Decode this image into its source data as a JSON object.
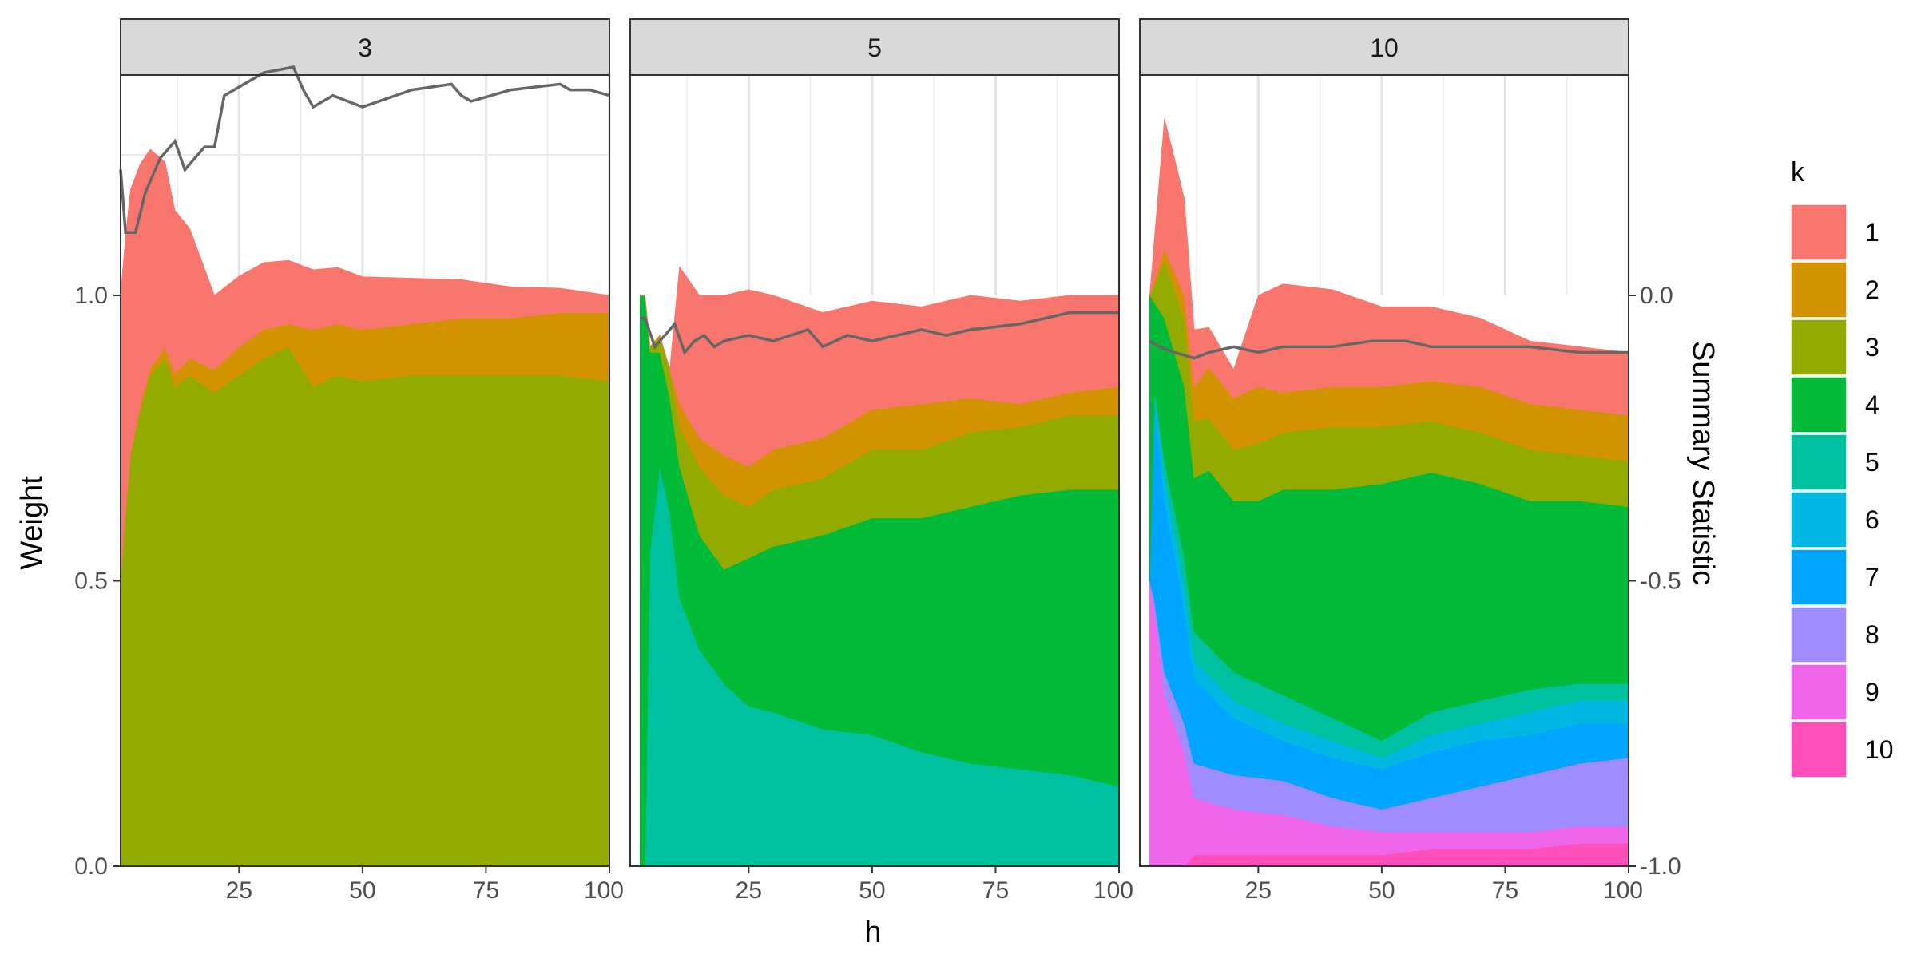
{
  "chart_data": {
    "type": "area",
    "subtype": "stacked-area-facets-with-summary-line",
    "xlabel": "h",
    "ylabel": "Weight",
    "y2label": "Summary Statistic",
    "x_ticks": [
      "25",
      "50",
      "75",
      "100"
    ],
    "xlim": [
      1,
      100
    ],
    "y_ticks": [
      "0.0",
      "0.5",
      "1.0"
    ],
    "ylim": [
      0,
      1
    ],
    "y2_ticks": [
      "-1.0",
      "-0.5",
      "0.0"
    ],
    "y2lim": [
      -1,
      0
    ],
    "grid": true,
    "legend": {
      "title": "k",
      "position": "right",
      "entries": [
        {
          "label": "1",
          "color": "#F8766D"
        },
        {
          "label": "2",
          "color": "#D39200"
        },
        {
          "label": "3",
          "color": "#93AA00"
        },
        {
          "label": "4",
          "color": "#00BA38"
        },
        {
          "label": "5",
          "color": "#00C19F"
        },
        {
          "label": "6",
          "color": "#00B9E3"
        },
        {
          "label": "7",
          "color": "#00A5FF"
        },
        {
          "label": "8",
          "color": "#9F8CFF"
        },
        {
          "label": "9",
          "color": "#F066EA"
        },
        {
          "label": "10",
          "color": "#FF4FBA"
        }
      ]
    },
    "panels": [
      {
        "strip": "3",
        "weights": [
          {
            "k": "3",
            "h": [
              1,
              2,
              3,
              5,
              7,
              10,
              12,
              15,
              20,
              25,
              30,
              35,
              40,
              45,
              50,
              60,
              70,
              80,
              90,
              100
            ],
            "value": [
              0.5,
              0.62,
              0.72,
              0.8,
              0.86,
              0.89,
              0.84,
              0.86,
              0.83,
              0.86,
              0.89,
              0.91,
              0.84,
              0.86,
              0.85,
              0.86,
              0.86,
              0.86,
              0.86,
              0.85
            ]
          },
          {
            "k": "2",
            "h": [
              1,
              20,
              25,
              30,
              35,
              40,
              45,
              50,
              60,
              70,
              80,
              90,
              100
            ],
            "value": [
              0.0,
              0.04,
              0.05,
              0.05,
              0.04,
              0.1,
              0.09,
              0.09,
              0.09,
              0.1,
              0.1,
              0.11,
              0.12
            ]
          },
          {
            "k": "1",
            "h": [
              1,
              20,
              100
            ],
            "value": [
              0.5,
              0.13,
              0.03
            ]
          }
        ],
        "summary": {
          "h": [
            1,
            2,
            4,
            6,
            9,
            12,
            14,
            18,
            20,
            22,
            30,
            36,
            38,
            40,
            44,
            50,
            60,
            68,
            70,
            72,
            80,
            90,
            92,
            96,
            100
          ],
          "value": [
            0.22,
            0.11,
            0.11,
            0.18,
            0.24,
            0.27,
            0.22,
            0.26,
            0.26,
            0.35,
            0.39,
            0.4,
            0.36,
            0.33,
            0.35,
            0.33,
            0.36,
            0.37,
            0.35,
            0.34,
            0.36,
            0.37,
            0.36,
            0.36,
            0.35
          ]
        }
      },
      {
        "strip": "5",
        "weights": [
          {
            "k": "5",
            "h": [
              3,
              4,
              5,
              7,
              9,
              11,
              15,
              20,
              25,
              30,
              40,
              50,
              60,
              70,
              80,
              90,
              100
            ],
            "value": [
              0.0,
              0.0,
              0.55,
              0.7,
              0.62,
              0.47,
              0.38,
              0.32,
              0.28,
              0.27,
              0.24,
              0.23,
              0.2,
              0.18,
              0.17,
              0.16,
              0.14
            ]
          },
          {
            "k": "4",
            "h": [
              3,
              4,
              5,
              7,
              9,
              11,
              15,
              20,
              25,
              30,
              40,
              50,
              60,
              70,
              80,
              90,
              100
            ],
            "value": [
              1.0,
              1.0,
              0.35,
              0.2,
              0.2,
              0.23,
              0.2,
              0.2,
              0.26,
              0.29,
              0.34,
              0.38,
              0.41,
              0.45,
              0.48,
              0.5,
              0.52
            ]
          },
          {
            "k": "3",
            "h": [
              3,
              4,
              9,
              11,
              15,
              20,
              25,
              30,
              40,
              50,
              60,
              70,
              80,
              90,
              100
            ],
            "value": [
              0.0,
              0.0,
              0.05,
              0.07,
              0.12,
              0.13,
              0.09,
              0.1,
              0.1,
              0.12,
              0.12,
              0.13,
              0.12,
              0.13,
              0.13
            ]
          },
          {
            "k": "2",
            "h": [
              3,
              9,
              11,
              15,
              20,
              25,
              30,
              40,
              50,
              60,
              70,
              80,
              90,
              100
            ],
            "value": [
              0.0,
              0.0,
              0.04,
              0.05,
              0.07,
              0.07,
              0.07,
              0.07,
              0.07,
              0.08,
              0.06,
              0.04,
              0.04,
              0.05
            ]
          },
          {
            "k": "1",
            "h": [
              3,
              9,
              11,
              15,
              20,
              25,
              30,
              40,
              50,
              60,
              70,
              80,
              90,
              100
            ],
            "value": [
              0.0,
              0.0,
              0.24,
              0.25,
              0.28,
              0.31,
              0.27,
              0.22,
              0.19,
              0.17,
              0.18,
              0.18,
              0.17,
              0.16
            ]
          }
        ],
        "summary": {
          "h": [
            3,
            4,
            6,
            8,
            10,
            12,
            14,
            16,
            18,
            20,
            25,
            30,
            37,
            40,
            45,
            50,
            60,
            65,
            70,
            80,
            90,
            100
          ],
          "value": [
            -0.04,
            -0.04,
            -0.09,
            -0.07,
            -0.05,
            -0.1,
            -0.08,
            -0.07,
            -0.09,
            -0.08,
            -0.07,
            -0.08,
            -0.06,
            -0.09,
            -0.07,
            -0.08,
            -0.06,
            -0.07,
            -0.06,
            -0.05,
            -0.03,
            -0.03
          ]
        }
      },
      {
        "strip": "10",
        "weights": [
          {
            "k": "10",
            "h": [
              3,
              10,
              12,
              20,
              30,
              40,
              50,
              60,
              70,
              80,
              90,
              100
            ],
            "value": [
              0.0,
              0.0,
              0.02,
              0.02,
              0.02,
              0.02,
              0.02,
              0.03,
              0.03,
              0.03,
              0.04,
              0.04
            ]
          },
          {
            "k": "9",
            "h": [
              3,
              4,
              6,
              10,
              12,
              20,
              30,
              40,
              50,
              60,
              70,
              80,
              90,
              100
            ],
            "value": [
              0.5,
              0.45,
              0.3,
              0.2,
              0.1,
              0.08,
              0.07,
              0.05,
              0.04,
              0.03,
              0.03,
              0.03,
              0.03,
              0.03
            ]
          },
          {
            "k": "8",
            "h": [
              3,
              6,
              10,
              12,
              20,
              30,
              40,
              50,
              60,
              70,
              80,
              90,
              100
            ],
            "value": [
              0.0,
              0.04,
              0.05,
              0.06,
              0.06,
              0.06,
              0.05,
              0.04,
              0.06,
              0.08,
              0.1,
              0.11,
              0.12
            ]
          },
          {
            "k": "7",
            "h": [
              3,
              4,
              6,
              10,
              12,
              20,
              30,
              40,
              50,
              60,
              70,
              80,
              90,
              100
            ],
            "value": [
              0.0,
              0.35,
              0.3,
              0.2,
              0.15,
              0.1,
              0.07,
              0.07,
              0.07,
              0.08,
              0.08,
              0.07,
              0.07,
              0.06
            ]
          },
          {
            "k": "6",
            "h": [
              3,
              6,
              10,
              12,
              20,
              30,
              40,
              50,
              60,
              70,
              80,
              90,
              100
            ],
            "value": [
              0.0,
              0.04,
              0.04,
              0.03,
              0.03,
              0.03,
              0.03,
              0.02,
              0.03,
              0.03,
              0.04,
              0.04,
              0.04
            ]
          },
          {
            "k": "5",
            "h": [
              3,
              6,
              10,
              12,
              20,
              30,
              40,
              50,
              60,
              70,
              80,
              90,
              100
            ],
            "value": [
              0.0,
              0.03,
              0.05,
              0.05,
              0.05,
              0.05,
              0.04,
              0.03,
              0.04,
              0.04,
              0.04,
              0.03,
              0.03
            ]
          },
          {
            "k": "4",
            "h": [
              3,
              4,
              6,
              10,
              12,
              15,
              20,
              25,
              30,
              40,
              50,
              60,
              70,
              80,
              90,
              100
            ],
            "value": [
              0.5,
              0.15,
              0.25,
              0.3,
              0.27,
              0.31,
              0.3,
              0.32,
              0.36,
              0.4,
              0.45,
              0.42,
              0.38,
              0.33,
              0.32,
              0.31
            ]
          },
          {
            "k": "3",
            "h": [
              3,
              6,
              10,
              12,
              15,
              20,
              25,
              30,
              40,
              50,
              60,
              70,
              80,
              90,
              100
            ],
            "value": [
              0.0,
              0.1,
              0.12,
              0.1,
              0.09,
              0.09,
              0.1,
              0.1,
              0.11,
              0.1,
              0.09,
              0.09,
              0.09,
              0.08,
              0.08
            ]
          },
          {
            "k": "2",
            "h": [
              3,
              6,
              10,
              12,
              15,
              20,
              25,
              30,
              40,
              50,
              60,
              70,
              80,
              90,
              100
            ],
            "value": [
              0.0,
              0.02,
              0.04,
              0.06,
              0.09,
              0.09,
              0.1,
              0.07,
              0.07,
              0.07,
              0.07,
              0.08,
              0.08,
              0.08,
              0.08
            ]
          },
          {
            "k": "1",
            "h": [
              3,
              6,
              10,
              12,
              15,
              20,
              25,
              30,
              40,
              50,
              60,
              70,
              80,
              90,
              100
            ],
            "value": [
              0.0,
              0.23,
              0.17,
              0.1,
              0.07,
              0.05,
              0.16,
              0.19,
              0.17,
              0.14,
              0.13,
              0.12,
              0.11,
              0.11,
              0.11
            ]
          }
        ],
        "summary": {
          "h": [
            3,
            5,
            8,
            12,
            15,
            20,
            25,
            30,
            40,
            48,
            55,
            60,
            70,
            80,
            90,
            95,
            100
          ],
          "value": [
            -0.08,
            -0.09,
            -0.1,
            -0.11,
            -0.1,
            -0.09,
            -0.1,
            -0.09,
            -0.09,
            -0.08,
            -0.08,
            -0.09,
            -0.09,
            -0.09,
            -0.1,
            -0.1,
            -0.1
          ]
        }
      }
    ]
  }
}
